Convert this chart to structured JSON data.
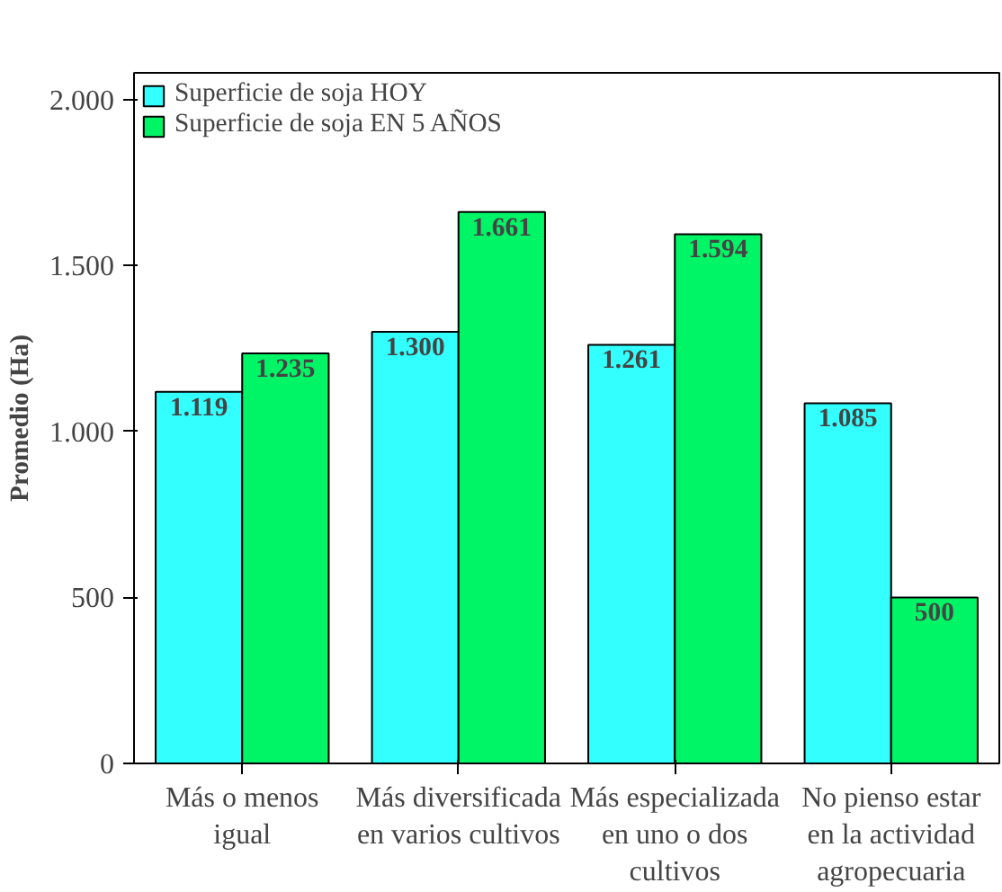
{
  "chart_data": {
    "type": "bar",
    "ylabel": "Promedio (Ha)",
    "categories": [
      "Más o menos\nigual",
      "Más diversificada\nen varios cultivos",
      "Más especializada\nen uno o dos\ncultivos",
      "No pienso estar\nen la actividad\nagropecuaria"
    ],
    "series": [
      {
        "name": "Superficie de soja HOY",
        "color": "#33ffff",
        "values": [
          1119,
          1300,
          1261,
          1085
        ],
        "value_labels": [
          "1.119",
          "1.300",
          "1.261",
          "1.085"
        ]
      },
      {
        "name": "Superficie de soja EN 5 AÑOS",
        "color": "#00f566",
        "values": [
          1235,
          1661,
          1594,
          500
        ],
        "value_labels": [
          "1.235",
          "1.661",
          "1.594",
          "500"
        ]
      }
    ],
    "ylim": [
      0,
      2080
    ],
    "yticks": [
      0,
      {
        "value": 500,
        "label": "500"
      },
      {
        "value": 1000,
        "label": "1.000"
      },
      {
        "value": 1500,
        "label": "1.500"
      },
      {
        "value": 2000,
        "label": "2.000"
      }
    ],
    "grid": false,
    "legend": "top left"
  }
}
